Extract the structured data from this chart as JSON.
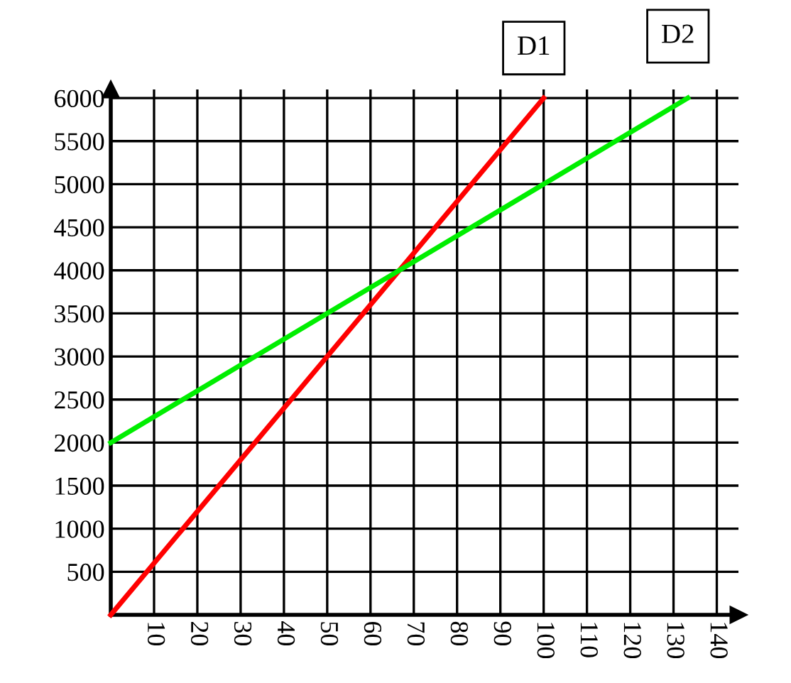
{
  "chart_data": {
    "type": "line",
    "series": [
      {
        "name": "D1",
        "color": "#ff0000",
        "x": [
          0,
          100
        ],
        "values": [
          0,
          6000
        ]
      },
      {
        "name": "D2",
        "color": "#00ee00",
        "x": [
          0,
          133.3
        ],
        "values": [
          2000,
          6000
        ]
      }
    ],
    "xlim": [
      0,
      145
    ],
    "ylim": [
      0,
      6100
    ],
    "xticks": [
      10,
      20,
      30,
      40,
      50,
      60,
      70,
      80,
      90,
      100,
      110,
      120,
      130,
      140
    ],
    "yticks": [
      500,
      1000,
      1500,
      2000,
      2500,
      3000,
      3500,
      4000,
      4500,
      5000,
      5500,
      6000
    ],
    "grid": true,
    "marker": "none",
    "line_style": "solid"
  }
}
